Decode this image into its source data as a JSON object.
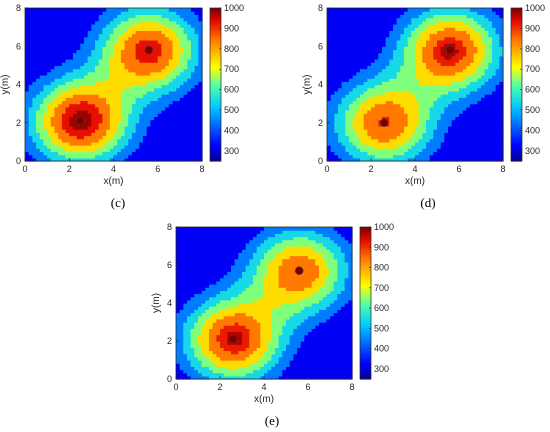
{
  "chart_data": [
    {
      "type": "heatmap",
      "caption": "(c)",
      "xlabel": "x(m)",
      "ylabel": "y(m)",
      "xlim": [
        0,
        8
      ],
      "ylim": [
        0,
        8
      ],
      "xticks": [
        "0",
        "2",
        "4",
        "6",
        "8"
      ],
      "yticks": [
        "0",
        "2",
        "4",
        "6",
        "8"
      ],
      "colorbar": {
        "range": [
          250,
          1000
        ],
        "ticks": [
          "300",
          "400",
          "500",
          "600",
          "700",
          "800",
          "900",
          "1000"
        ]
      },
      "peaks": [
        {
          "x": 2.5,
          "y": 2.1,
          "value": 1000
        },
        {
          "x": 5.6,
          "y": 5.8,
          "value": 940
        }
      ],
      "contour_levels": [
        400,
        500,
        600,
        700,
        800,
        900,
        970
      ]
    },
    {
      "type": "heatmap",
      "caption": "(d)",
      "xlabel": "x(m)",
      "ylabel": "y(m)",
      "xlim": [
        0,
        8
      ],
      "ylim": [
        0,
        8
      ],
      "xticks": [
        "0",
        "2",
        "4",
        "6",
        "8"
      ],
      "yticks": [
        "0",
        "2",
        "4",
        "6",
        "8"
      ],
      "colorbar": {
        "range": [
          250,
          1000
        ],
        "ticks": [
          "300",
          "400",
          "500",
          "600",
          "700",
          "800",
          "900",
          "1000"
        ]
      },
      "peaks": [
        {
          "x": 2.6,
          "y": 2.0,
          "value": 900
        },
        {
          "x": 5.6,
          "y": 5.8,
          "value": 960
        }
      ],
      "contour_levels": [
        400,
        500,
        600,
        700,
        800,
        900,
        950
      ]
    },
    {
      "type": "heatmap",
      "caption": "(e)",
      "xlabel": "x(m)",
      "ylabel": "y(m)",
      "xlim": [
        0,
        8
      ],
      "ylim": [
        0,
        8
      ],
      "xticks": [
        "0",
        "2",
        "4",
        "6",
        "8"
      ],
      "yticks": [
        "0",
        "2",
        "4",
        "6",
        "8"
      ],
      "colorbar": {
        "range": [
          250,
          1000
        ],
        "ticks": [
          "300",
          "400",
          "500",
          "600",
          "700",
          "800",
          "900",
          "1000"
        ]
      },
      "peaks": [
        {
          "x": 2.6,
          "y": 2.1,
          "value": 960
        },
        {
          "x": 5.6,
          "y": 5.7,
          "value": 880
        }
      ],
      "contour_levels": [
        400,
        500,
        600,
        700,
        800,
        900,
        950
      ]
    }
  ]
}
